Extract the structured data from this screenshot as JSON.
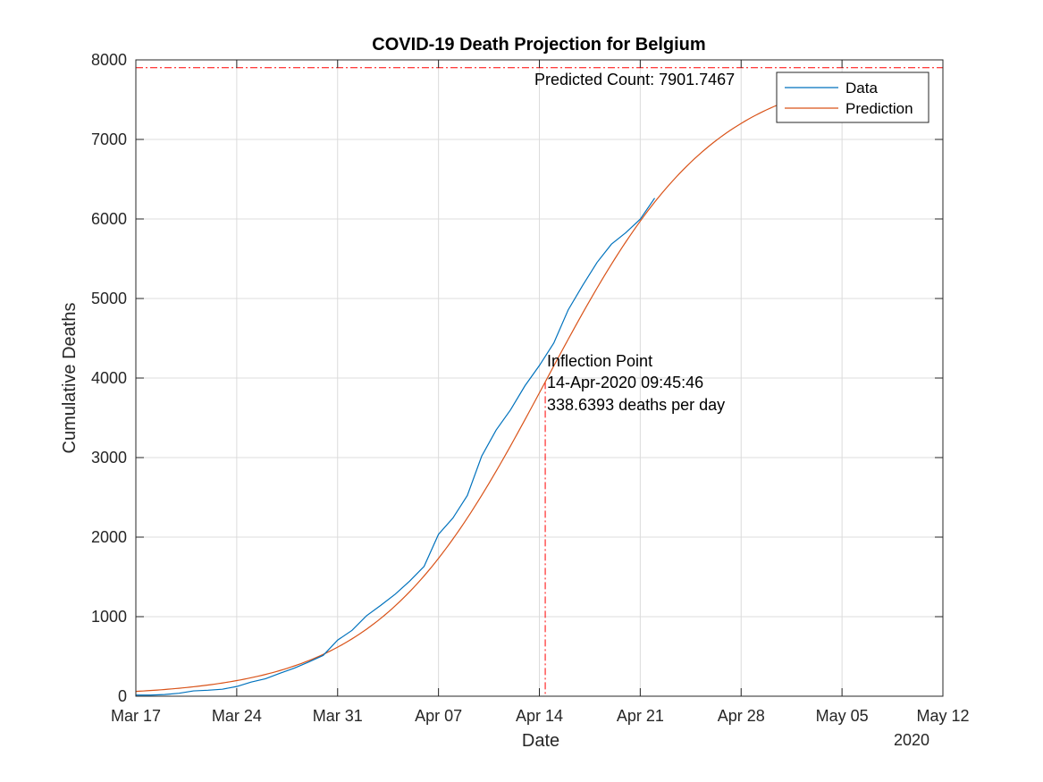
{
  "chart_data": {
    "type": "line",
    "title": "COVID-19 Death Projection for Belgium",
    "xlabel": "Date",
    "ylabel": "Cumulative Deaths",
    "year_label": "2020",
    "x_tick_labels": [
      "Mar 17",
      "Mar 24",
      "Mar 31",
      "Apr 07",
      "Apr 14",
      "Apr 21",
      "Apr 28",
      "May 05",
      "May 12"
    ],
    "x_ticks": [
      "2020-03-17",
      "2020-03-24",
      "2020-03-31",
      "2020-04-07",
      "2020-04-14",
      "2020-04-21",
      "2020-04-28",
      "2020-05-05",
      "2020-05-12"
    ],
    "xlim": [
      "2020-03-17",
      "2020-05-12"
    ],
    "ylim": [
      0,
      8000
    ],
    "y_ticks": [
      0,
      1000,
      2000,
      3000,
      4000,
      5000,
      6000,
      7000,
      8000
    ],
    "grid": true,
    "legend_position": "top-right",
    "series": [
      {
        "name": "Data",
        "color": "#0072BD",
        "points": [
          [
            "2020-03-17",
            14
          ],
          [
            "2020-03-18",
            14
          ],
          [
            "2020-03-19",
            21
          ],
          [
            "2020-03-20",
            37
          ],
          [
            "2020-03-21",
            67
          ],
          [
            "2020-03-22",
            75
          ],
          [
            "2020-03-23",
            88
          ],
          [
            "2020-03-24",
            122
          ],
          [
            "2020-03-25",
            178
          ],
          [
            "2020-03-26",
            220
          ],
          [
            "2020-03-27",
            289
          ],
          [
            "2020-03-28",
            353
          ],
          [
            "2020-03-29",
            431
          ],
          [
            "2020-03-30",
            513
          ],
          [
            "2020-03-31",
            705
          ],
          [
            "2020-04-01",
            828
          ],
          [
            "2020-04-02",
            1011
          ],
          [
            "2020-04-03",
            1143
          ],
          [
            "2020-04-04",
            1283
          ],
          [
            "2020-04-05",
            1447
          ],
          [
            "2020-04-06",
            1632
          ],
          [
            "2020-04-07",
            2035
          ],
          [
            "2020-04-08",
            2240
          ],
          [
            "2020-04-09",
            2523
          ],
          [
            "2020-04-10",
            3019
          ],
          [
            "2020-04-11",
            3346
          ],
          [
            "2020-04-12",
            3600
          ],
          [
            "2020-04-13",
            3903
          ],
          [
            "2020-04-14",
            4157
          ],
          [
            "2020-04-15",
            4440
          ],
          [
            "2020-04-16",
            4857
          ],
          [
            "2020-04-17",
            5163
          ],
          [
            "2020-04-18",
            5453
          ],
          [
            "2020-04-19",
            5683
          ],
          [
            "2020-04-20",
            5828
          ],
          [
            "2020-04-21",
            5998
          ],
          [
            "2020-04-22",
            6262
          ]
        ]
      },
      {
        "name": "Prediction",
        "color": "#D95319",
        "model": "logistic",
        "K": 7901.7467,
        "inflection": "2020-04-14T09:45:46",
        "peak_rate_per_day": 338.6393,
        "range": [
          "2020-03-17",
          "2020-05-11"
        ]
      }
    ],
    "annotations": {
      "asymptote_label": "Predicted Count: 7901.7467",
      "asymptote_value": 7901.7467,
      "inflection_lines": [
        "Inflection Point",
        "14-Apr-2020 09:45:46",
        "338.6393 deaths per day"
      ],
      "inflection_date": "2020-04-14T09:45:46"
    },
    "reference_line_color": "#FF0000"
  }
}
